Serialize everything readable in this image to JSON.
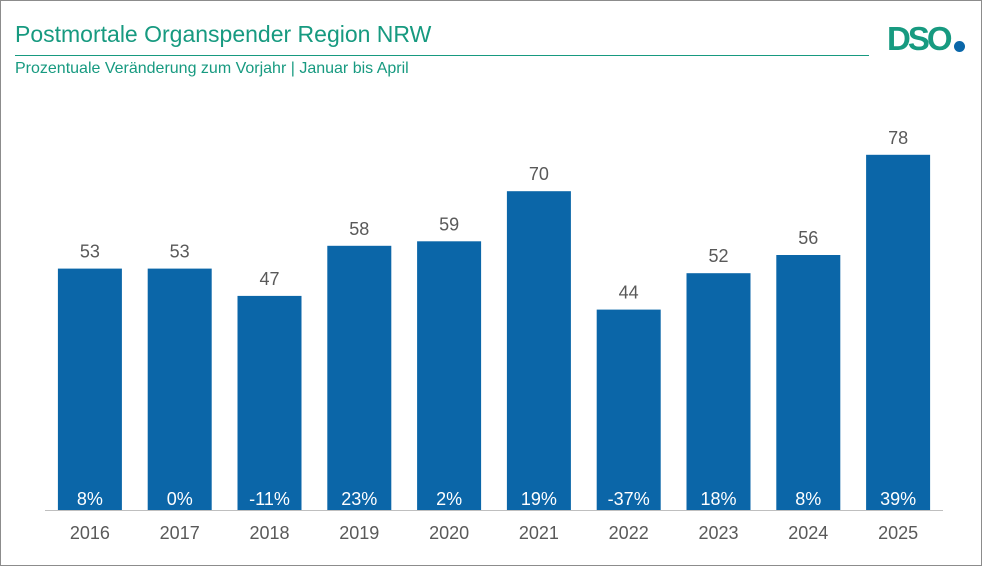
{
  "header": {
    "title": "Postmortale Organspender Region NRW",
    "subtitle": "Prozentuale Veränderung zum Vorjahr | Januar bis April"
  },
  "logo": {
    "text": "DSO"
  },
  "colors": {
    "bar": "#0b66a8",
    "accent": "#179a80",
    "value_label": "#595959",
    "axis": "#bfbfbf",
    "pct_label": "#ffffff",
    "logo_dot": "#0a67a9"
  },
  "chart_data": {
    "type": "bar",
    "title": "Postmortale Organspender Region NRW",
    "subtitle": "Prozentuale Veränderung zum Vorjahr | Januar bis April",
    "categories": [
      "2016",
      "2017",
      "2018",
      "2019",
      "2020",
      "2021",
      "2022",
      "2023",
      "2024",
      "2025"
    ],
    "values": [
      53,
      53,
      47,
      58,
      59,
      70,
      44,
      52,
      56,
      78
    ],
    "change_labels": [
      "8%",
      "0%",
      "-11%",
      "23%",
      "2%",
      "19%",
      "-37%",
      "18%",
      "8%",
      "39%"
    ],
    "ylim": [
      0,
      92
    ],
    "grid": false,
    "legend": "none",
    "xlabel": "",
    "ylabel": ""
  }
}
